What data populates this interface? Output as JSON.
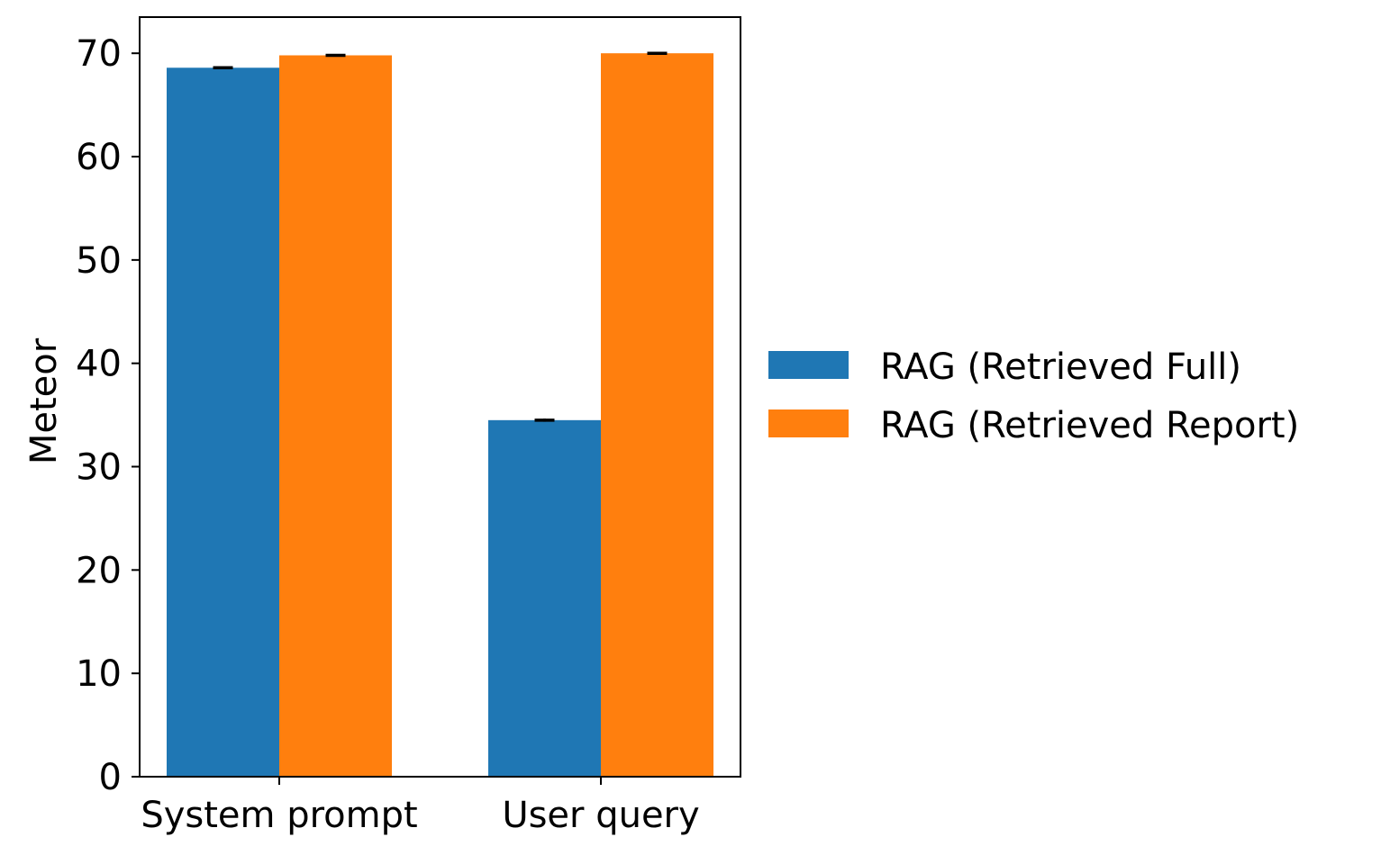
{
  "chart_data": {
    "type": "bar",
    "title": "",
    "xlabel": "",
    "ylabel": "Meteor",
    "categories": [
      "System prompt",
      "User query"
    ],
    "series": [
      {
        "name": "RAG (Retrieved Full)",
        "color": "#1f77b4",
        "values": [
          68.6,
          34.5
        ],
        "errors": [
          0.15,
          0.15
        ]
      },
      {
        "name": "RAG (Retrieved Report)",
        "color": "#ff7f0e",
        "values": [
          69.8,
          70.0
        ],
        "errors": [
          0.1,
          0.1
        ]
      }
    ],
    "ylim": [
      0,
      73.5
    ],
    "yticks": [
      0,
      10,
      20,
      30,
      40,
      50,
      60,
      70
    ],
    "grid": false,
    "legend_position": "right, outside plot"
  }
}
